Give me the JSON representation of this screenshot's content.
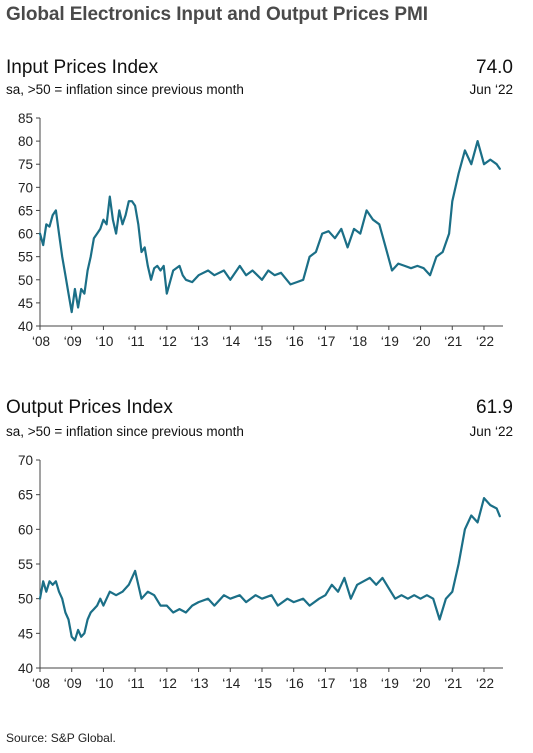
{
  "title": "Global Electronics Input and Output Prices PMI",
  "source": "Source: S&P Global.",
  "series_color": "#1b6f87",
  "chart_data": [
    {
      "type": "line",
      "title": "Input Prices Index",
      "subtitle": "sa, >50 = inflation since previous month",
      "latest_value": "74.0",
      "latest_date": "Jun ‘22",
      "ylim": [
        40,
        85
      ],
      "yticks": [
        40,
        45,
        50,
        55,
        60,
        65,
        70,
        75,
        80,
        85
      ],
      "xlim": [
        2008,
        2022.6
      ],
      "xtick_labels": [
        "‘08",
        "‘09",
        "‘10",
        "‘11",
        "‘12",
        "‘13",
        "‘14",
        "‘15",
        "‘16",
        "‘17",
        "‘18",
        "‘19",
        "‘20",
        "‘21",
        "‘22"
      ],
      "grid": false,
      "x": [
        2008.0,
        2008.1,
        2008.2,
        2008.3,
        2008.4,
        2008.5,
        2008.6,
        2008.7,
        2008.8,
        2008.9,
        2009.0,
        2009.1,
        2009.2,
        2009.3,
        2009.4,
        2009.5,
        2009.6,
        2009.7,
        2009.8,
        2009.9,
        2010.0,
        2010.1,
        2010.2,
        2010.3,
        2010.4,
        2010.5,
        2010.6,
        2010.7,
        2010.8,
        2010.9,
        2011.0,
        2011.1,
        2011.2,
        2011.3,
        2011.4,
        2011.5,
        2011.6,
        2011.7,
        2011.8,
        2011.9,
        2012.0,
        2012.2,
        2012.4,
        2012.5,
        2012.6,
        2012.8,
        2013.0,
        2013.3,
        2013.5,
        2013.8,
        2014.0,
        2014.3,
        2014.5,
        2014.7,
        2015.0,
        2015.2,
        2015.4,
        2015.6,
        2015.9,
        2016.1,
        2016.3,
        2016.5,
        2016.7,
        2016.9,
        2017.1,
        2017.3,
        2017.5,
        2017.7,
        2017.9,
        2018.1,
        2018.3,
        2018.5,
        2018.7,
        2018.9,
        2019.1,
        2019.3,
        2019.5,
        2019.7,
        2019.9,
        2020.1,
        2020.3,
        2020.5,
        2020.7,
        2020.9,
        2021.0,
        2021.2,
        2021.4,
        2021.6,
        2021.8,
        2022.0,
        2022.2,
        2022.4,
        2022.5
      ],
      "y": [
        60.0,
        57.5,
        62.0,
        61.5,
        64.0,
        65.0,
        60.0,
        55.0,
        51.0,
        47.0,
        43.0,
        48.0,
        44.0,
        48.0,
        47.0,
        52.0,
        55.0,
        59.0,
        60.0,
        61.0,
        63.0,
        62.0,
        68.0,
        63.0,
        60.0,
        65.0,
        62.0,
        64.0,
        67.0,
        67.0,
        66.0,
        62.0,
        56.0,
        57.0,
        53.0,
        50.0,
        52.5,
        53.0,
        52.0,
        53.0,
        47.0,
        52.0,
        53.0,
        51.0,
        50.0,
        49.5,
        51.0,
        52.0,
        51.0,
        52.0,
        50.0,
        53.0,
        51.0,
        52.0,
        50.0,
        52.0,
        51.0,
        51.5,
        49.0,
        49.5,
        50.0,
        55.0,
        56.0,
        60.0,
        60.5,
        59.0,
        61.0,
        57.0,
        61.0,
        60.0,
        65.0,
        63.0,
        62.0,
        57.0,
        52.0,
        53.5,
        53.0,
        52.5,
        53.0,
        52.5,
        51.0,
        55.0,
        56.0,
        60.0,
        67.0,
        73.0,
        78.0,
        75.0,
        80.0,
        75.0,
        76.0,
        75.0,
        74.0
      ]
    },
    {
      "type": "line",
      "title": "Output Prices Index",
      "subtitle": "sa, >50 = inflation since previous month",
      "latest_value": "61.9",
      "latest_date": "Jun ‘22",
      "ylim": [
        40,
        70
      ],
      "yticks": [
        40,
        45,
        50,
        55,
        60,
        65,
        70
      ],
      "xlim": [
        2008,
        2022.6
      ],
      "xtick_labels": [
        "‘08",
        "‘09",
        "‘10",
        "‘11",
        "‘12",
        "‘13",
        "‘14",
        "‘15",
        "‘16",
        "‘17",
        "‘18",
        "‘19",
        "‘20",
        "‘21",
        "‘22"
      ],
      "grid": false,
      "x": [
        2008.0,
        2008.1,
        2008.2,
        2008.3,
        2008.4,
        2008.5,
        2008.6,
        2008.7,
        2008.8,
        2008.9,
        2009.0,
        2009.1,
        2009.2,
        2009.3,
        2009.4,
        2009.5,
        2009.6,
        2009.7,
        2009.8,
        2009.9,
        2010.0,
        2010.2,
        2010.4,
        2010.6,
        2010.8,
        2011.0,
        2011.2,
        2011.4,
        2011.6,
        2011.8,
        2012.0,
        2012.2,
        2012.4,
        2012.6,
        2012.8,
        2013.0,
        2013.3,
        2013.5,
        2013.8,
        2014.0,
        2014.3,
        2014.5,
        2014.8,
        2015.0,
        2015.3,
        2015.5,
        2015.8,
        2016.0,
        2016.3,
        2016.5,
        2016.8,
        2017.0,
        2017.2,
        2017.4,
        2017.6,
        2017.8,
        2018.0,
        2018.2,
        2018.4,
        2018.6,
        2018.8,
        2019.0,
        2019.2,
        2019.4,
        2019.6,
        2019.8,
        2020.0,
        2020.2,
        2020.4,
        2020.6,
        2020.8,
        2021.0,
        2021.2,
        2021.4,
        2021.6,
        2021.8,
        2022.0,
        2022.2,
        2022.4,
        2022.5
      ],
      "y": [
        50.0,
        52.5,
        51.0,
        52.5,
        52.0,
        52.5,
        51.0,
        50.0,
        48.0,
        47.0,
        44.5,
        44.0,
        45.5,
        44.5,
        45.0,
        47.0,
        48.0,
        48.5,
        49.0,
        50.0,
        49.0,
        51.0,
        50.5,
        51.0,
        52.0,
        54.0,
        50.0,
        51.0,
        50.5,
        49.0,
        49.0,
        48.0,
        48.5,
        48.0,
        49.0,
        49.5,
        50.0,
        49.0,
        50.5,
        50.0,
        50.5,
        49.5,
        50.5,
        50.0,
        50.5,
        49.0,
        50.0,
        49.5,
        50.0,
        49.0,
        50.0,
        50.5,
        52.0,
        51.0,
        53.0,
        50.0,
        52.0,
        52.5,
        53.0,
        52.0,
        53.0,
        51.5,
        50.0,
        50.5,
        50.0,
        50.5,
        50.0,
        50.5,
        50.0,
        47.0,
        50.0,
        51.0,
        55.0,
        60.0,
        62.0,
        61.0,
        64.5,
        63.5,
        63.0,
        61.9
      ]
    }
  ]
}
